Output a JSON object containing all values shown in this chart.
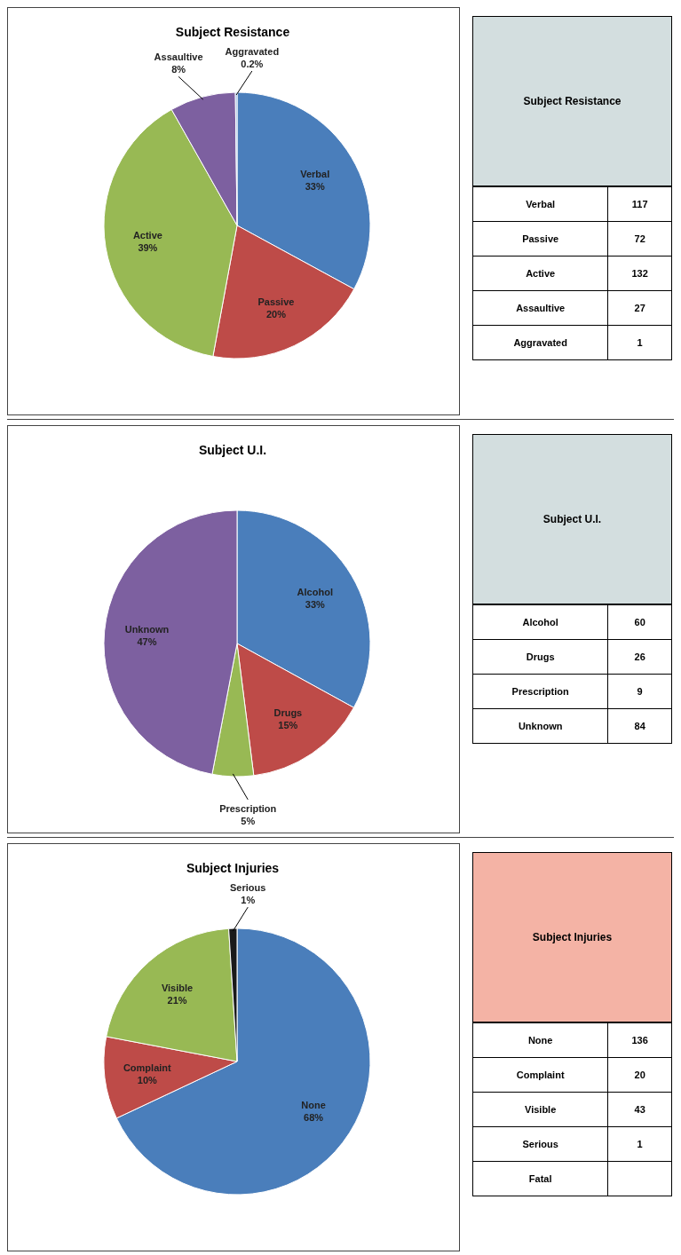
{
  "chart_data": [
    {
      "type": "pie",
      "title": "Subject Resistance",
      "categories": [
        "Verbal",
        "Passive",
        "Active",
        "Assaultive",
        "Aggravated"
      ],
      "values": [
        33,
        20,
        39,
        8,
        0.2
      ],
      "value_labels": [
        "33%",
        "20%",
        "39%",
        "8%",
        "0.2%"
      ],
      "colors": [
        "#4a7ebb",
        "#be4b48",
        "#98b954",
        "#7d60a0",
        "#7da7d9"
      ]
    },
    {
      "type": "other",
      "title": "Subject Resistance",
      "categories": [
        "Verbal",
        "Passive",
        "Active",
        "Assaultive",
        "Aggravated"
      ],
      "values": [
        117,
        72,
        132,
        27,
        1
      ],
      "data_labels": true,
      "color": "#d3dedf"
    },
    {
      "type": "pie",
      "title": "Subject U.I.",
      "categories": [
        "Alcohol",
        "Drugs",
        "Prescription",
        "Unknown"
      ],
      "values": [
        33,
        15,
        5,
        47
      ],
      "value_labels": [
        "33%",
        "15%",
        "5%",
        "47%"
      ],
      "colors": [
        "#4a7ebb",
        "#be4b48",
        "#98b954",
        "#7d60a0"
      ]
    },
    {
      "type": "other",
      "title": "Subject U.I.",
      "categories": [
        "Alcohol",
        "Drugs",
        "Prescription",
        "Unknown"
      ],
      "values": [
        60,
        26,
        9,
        84
      ],
      "data_labels": true,
      "color": "#d3dedf"
    },
    {
      "type": "pie",
      "title": "Subject Injuries",
      "categories": [
        "None",
        "Complaint",
        "Visible",
        "Serious"
      ],
      "values": [
        68,
        10,
        21,
        1
      ],
      "value_labels": [
        "68%",
        "10%",
        "21%",
        "1%"
      ],
      "colors": [
        "#4a7ebb",
        "#be4b48",
        "#98b954",
        "#1a1a1a"
      ]
    },
    {
      "type": "other",
      "title": "Subject Injuries",
      "categories": [
        "None",
        "Complaint",
        "Visible",
        "Serious",
        "Fatal"
      ],
      "values": [
        136,
        20,
        43,
        1,
        null
      ],
      "data_labels": true,
      "color": "#f4b3a5"
    }
  ]
}
